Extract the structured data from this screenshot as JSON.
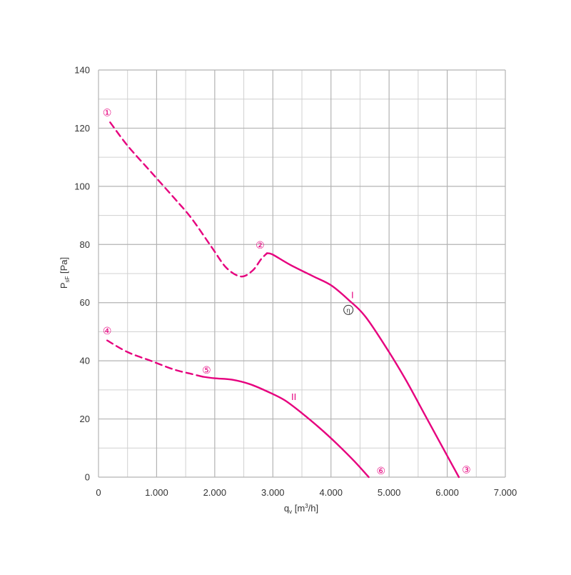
{
  "chart_data": {
    "type": "line",
    "title": "",
    "xlabel": {
      "main": "q",
      "sub": "v",
      "rest": " [m",
      "sup": "3",
      "end": "/h]"
    },
    "ylabel": {
      "main": "P",
      "sub": "sF",
      "rest": " [Pa]"
    },
    "xlim": [
      0,
      7000
    ],
    "ylim": [
      0,
      140
    ],
    "x_ticks": [
      0,
      1000,
      2000,
      3000,
      4000,
      5000,
      6000,
      7000
    ],
    "x_tick_labels": [
      "0",
      "1.000",
      "2.000",
      "3.000",
      "4.000",
      "5.000",
      "6.000",
      "7.000"
    ],
    "y_ticks": [
      0,
      20,
      40,
      60,
      80,
      100,
      120,
      140
    ],
    "y_tick_labels": [
      "0",
      "20",
      "40",
      "60",
      "80",
      "100",
      "120",
      "140"
    ],
    "grid": true,
    "color": "#e6007e",
    "series": [
      {
        "name": "I",
        "dashed_points": [
          [
            200,
            122
          ],
          [
            500,
            114
          ],
          [
            900,
            105
          ],
          [
            1300,
            96
          ],
          [
            1600,
            89
          ],
          [
            1950,
            79
          ],
          [
            2200,
            72
          ],
          [
            2450,
            69
          ],
          [
            2650,
            71
          ],
          [
            2800,
            75
          ],
          [
            2900,
            77
          ]
        ],
        "solid_points": [
          [
            2900,
            77
          ],
          [
            3000,
            76.5
          ],
          [
            3300,
            73
          ],
          [
            3700,
            69
          ],
          [
            4000,
            66
          ],
          [
            4300,
            61
          ],
          [
            4600,
            55
          ],
          [
            5000,
            43
          ],
          [
            5300,
            33
          ],
          [
            5600,
            22
          ],
          [
            5900,
            11
          ],
          [
            6200,
            0
          ]
        ]
      },
      {
        "name": "II",
        "dashed_points": [
          [
            150,
            47
          ],
          [
            500,
            43
          ],
          [
            900,
            40
          ],
          [
            1300,
            37
          ],
          [
            1600,
            35.5
          ],
          [
            1800,
            34.5
          ]
        ],
        "solid_points": [
          [
            1800,
            34.5
          ],
          [
            2000,
            34
          ],
          [
            2300,
            33.5
          ],
          [
            2600,
            32
          ],
          [
            2900,
            29.5
          ],
          [
            3200,
            26.5
          ],
          [
            3500,
            22
          ],
          [
            3800,
            17
          ],
          [
            4100,
            11.5
          ],
          [
            4400,
            5.5
          ],
          [
            4650,
            0
          ]
        ]
      }
    ],
    "annotations": [
      {
        "symbol": "①",
        "x": 150,
        "y": 125.5
      },
      {
        "symbol": "②",
        "x": 2780,
        "y": 80
      },
      {
        "symbol": "③",
        "x": 6330,
        "y": 2.7
      },
      {
        "symbol": "④",
        "x": 150,
        "y": 50.5
      },
      {
        "symbol": "⑤",
        "x": 1860,
        "y": 37
      },
      {
        "symbol": "⑥",
        "x": 4860,
        "y": 2.3
      },
      {
        "symbol": "η",
        "x": 4300,
        "y": 57.5
      },
      {
        "symbol": "I",
        "x": 4370,
        "y": 62.5
      },
      {
        "symbol": "II",
        "x": 3360,
        "y": 27.5
      }
    ]
  }
}
